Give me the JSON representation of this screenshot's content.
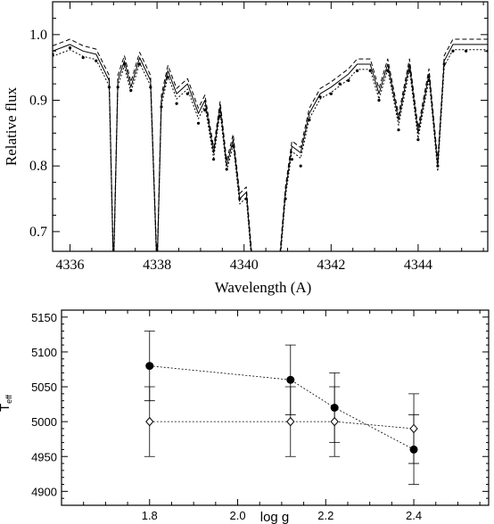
{
  "chart_data": [
    {
      "type": "line",
      "xlabel": "Wavelength (A)",
      "ylabel": "Relative flux",
      "xlim": [
        4335.6,
        4345.6
      ],
      "ylim": [
        0.67,
        1.05
      ],
      "xticks": [
        4336,
        4338,
        4340,
        4342,
        4344
      ],
      "xtick_labels": [
        "4336",
        "4338",
        "4340",
        "4342",
        "4344"
      ],
      "yticks": [
        0.7,
        0.8,
        0.9,
        1.0
      ],
      "ytick_labels": [
        "0.7",
        "0.8",
        "0.9",
        "1.0"
      ],
      "series": [
        {
          "style": "model-curves",
          "x": [
            4335.6,
            4336.0,
            4336.3,
            4336.6,
            4336.9,
            4337.0,
            4337.1,
            4337.25,
            4337.4,
            4337.6,
            4337.85,
            4338.0,
            4338.1,
            4338.25,
            4338.45,
            4338.7,
            4338.95,
            4339.1,
            4339.3,
            4339.45,
            4339.6,
            4339.75,
            4339.9,
            4340.05,
            4340.2,
            4340.8,
            4340.95,
            4341.1,
            4341.3,
            4341.5,
            4341.75,
            4342.0,
            4342.2,
            4342.4,
            4342.6,
            4342.9,
            4343.1,
            4343.3,
            4343.55,
            4343.8,
            4344.0,
            4344.25,
            4344.45,
            4344.6,
            4344.8,
            4345.1,
            4345.6
          ],
          "y": [
            0.975,
            0.985,
            0.975,
            0.97,
            0.93,
            0.64,
            0.93,
            0.96,
            0.92,
            0.965,
            0.93,
            0.64,
            0.9,
            0.945,
            0.91,
            0.925,
            0.88,
            0.9,
            0.82,
            0.89,
            0.8,
            0.84,
            0.75,
            0.76,
            0.64,
            0.64,
            0.76,
            0.83,
            0.82,
            0.88,
            0.91,
            0.92,
            0.93,
            0.94,
            0.955,
            0.955,
            0.91,
            0.955,
            0.87,
            0.955,
            0.85,
            0.94,
            0.8,
            0.96,
            0.985,
            0.985,
            0.985
          ]
        },
        {
          "style": "observed-points",
          "x": [
            4335.6,
            4336.0,
            4336.3,
            4336.6,
            4336.9,
            4337.0,
            4337.1,
            4337.25,
            4337.4,
            4337.6,
            4337.85,
            4338.0,
            4338.1,
            4338.25,
            4338.45,
            4338.7,
            4338.95,
            4339.1,
            4339.3,
            4339.45,
            4339.6,
            4339.75,
            4339.9,
            4340.05,
            4340.2,
            4340.8,
            4340.95,
            4341.1,
            4341.3,
            4341.5,
            4341.75,
            4342.0,
            4342.2,
            4342.4,
            4342.6,
            4342.9,
            4343.1,
            4343.3,
            4343.55,
            4343.8,
            4344.0,
            4344.25,
            4344.45,
            4344.6,
            4344.8,
            4345.1,
            4345.6
          ],
          "y": [
            0.97,
            0.98,
            0.965,
            0.96,
            0.92,
            0.64,
            0.92,
            0.955,
            0.915,
            0.955,
            0.92,
            0.64,
            0.89,
            0.935,
            0.895,
            0.91,
            0.865,
            0.885,
            0.81,
            0.875,
            0.795,
            0.83,
            0.75,
            0.75,
            0.64,
            0.64,
            0.75,
            0.81,
            0.8,
            0.87,
            0.905,
            0.91,
            0.925,
            0.93,
            0.945,
            0.945,
            0.9,
            0.945,
            0.855,
            0.945,
            0.84,
            0.93,
            0.8,
            0.955,
            0.975,
            0.975,
            0.975
          ]
        }
      ]
    },
    {
      "type": "scatter",
      "xlabel": "log g",
      "ylabel_main": "T",
      "ylabel_sub": "eff",
      "xlim": [
        1.6,
        2.57
      ],
      "ylim": [
        4880,
        5160
      ],
      "xticks": [
        1.8,
        2.0,
        2.2,
        2.4
      ],
      "xtick_labels": [
        "1.8",
        "2.0",
        "2.2",
        "2.4"
      ],
      "yticks": [
        4900,
        4950,
        5000,
        5050,
        5100,
        5150
      ],
      "ytick_labels": [
        "4900",
        "4950",
        "5000",
        "5050",
        "5100",
        "5150"
      ],
      "series": [
        {
          "marker": "filled-circle",
          "x": [
            1.8,
            2.12,
            2.22,
            2.4
          ],
          "y": [
            5080,
            5060,
            5020,
            4960
          ],
          "err": [
            50,
            50,
            50,
            50
          ]
        },
        {
          "marker": "open-diamond",
          "x": [
            1.8,
            2.12,
            2.22,
            2.4
          ],
          "y": [
            5000,
            5000,
            5000,
            4990
          ],
          "err": [
            50,
            50,
            50,
            50
          ]
        }
      ]
    }
  ]
}
